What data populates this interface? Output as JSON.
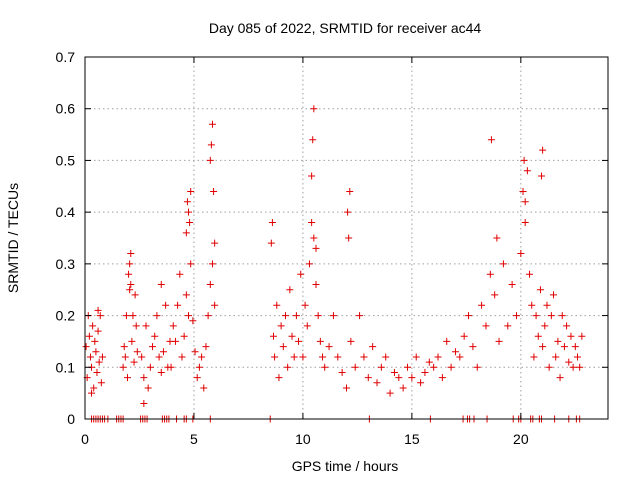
{
  "chart_data": {
    "type": "scatter",
    "title": "Day 085 of 2022, SRMTID for receiver ac44",
    "xlabel": "GPS time / hours",
    "ylabel": "SRMTID / TECUs",
    "xlim": [
      0,
      24
    ],
    "ylim": [
      0,
      0.7
    ],
    "x_ticks": [
      0,
      5,
      10,
      15,
      20
    ],
    "y_ticks": [
      0,
      0.1,
      0.2,
      0.3,
      0.4,
      0.5,
      0.6,
      0.7
    ],
    "x_tick_labels": [
      "0",
      "5",
      "10",
      "15",
      "20"
    ],
    "y_tick_labels": [
      "0",
      "0.1",
      "0.2",
      "0.3",
      "0.4",
      "0.5",
      "0.6",
      "0.7"
    ],
    "grid": true,
    "marker": "+",
    "color": "#e00000",
    "series": [
      {
        "name": "SRMTID",
        "x": [
          0.05,
          0.1,
          0.15,
          0.2,
          0.25,
          0.3,
          0.35,
          0.4,
          0.45,
          0.5,
          0.55,
          0.6,
          0.65,
          0.7,
          0.75,
          0.8,
          0.3,
          0.6,
          1.75,
          1.8,
          1.85,
          1.9,
          1.95,
          2.0,
          2.05,
          2.1,
          2.15,
          2.2,
          2.25,
          2.3,
          2.35,
          2.4,
          2.05,
          2.1,
          2.6,
          2.7,
          2.8,
          2.9,
          3.0,
          3.1,
          3.2,
          3.3,
          3.4,
          3.5,
          3.6,
          3.7,
          3.8,
          3.9,
          2.7,
          3.5,
          3.95,
          4.05,
          4.15,
          4.25,
          4.35,
          4.45,
          4.55,
          4.65,
          4.75,
          4.85,
          4.95,
          4.65,
          4.7,
          4.75,
          4.8,
          4.85,
          5.05,
          5.15,
          5.25,
          5.35,
          5.45,
          5.55,
          5.65,
          5.75,
          5.85,
          5.95,
          5.75,
          5.8,
          5.85,
          5.9,
          5.95,
          8.55,
          8.6,
          8.65,
          8.7,
          8.8,
          8.9,
          9.0,
          9.1,
          9.2,
          9.3,
          9.4,
          9.5,
          9.6,
          9.7,
          9.8,
          9.9,
          10.0,
          10.1,
          10.2,
          10.3,
          10.4,
          10.5,
          10.6,
          10.7,
          10.8,
          10.9,
          11.0,
          10.4,
          10.45,
          10.5,
          10.6,
          11.2,
          11.4,
          11.6,
          11.8,
          12.0,
          12.2,
          12.4,
          12.6,
          12.8,
          13.0,
          12.05,
          12.1,
          12.15,
          13.2,
          13.4,
          13.6,
          13.8,
          14.0,
          14.2,
          14.4,
          14.6,
          14.8,
          15.0,
          15.2,
          15.4,
          15.6,
          15.8,
          16.0,
          16.2,
          16.4,
          16.6,
          16.8,
          17.0,
          17.2,
          17.4,
          17.6,
          17.8,
          18.0,
          18.2,
          18.4,
          18.6,
          18.8,
          18.9,
          19.0,
          19.2,
          19.4,
          19.6,
          19.8,
          20.0,
          20.1,
          20.2,
          20.3,
          20.4,
          20.5,
          20.6,
          20.7,
          20.8,
          20.9,
          21.0,
          21.1,
          21.2,
          21.3,
          21.4,
          21.5,
          21.6,
          21.7,
          21.8,
          21.9,
          22.0,
          22.1,
          22.2,
          22.3,
          22.4,
          22.5,
          22.6,
          22.7,
          22.8,
          21.0,
          20.95,
          20.15,
          20.2,
          18.65,
          0.3,
          0.4,
          0.5,
          0.6,
          0.7,
          0.8,
          0.9,
          1.05,
          1.45,
          1.55,
          1.65,
          1.75,
          2.55,
          2.65,
          2.75,
          2.85,
          3.55,
          3.65,
          3.75,
          3.85,
          4.2,
          4.55,
          4.65,
          4.95,
          5.75,
          8.5,
          13.05,
          15.85,
          17.35,
          17.55,
          17.65,
          17.85,
          18.45,
          19.65,
          19.9,
          20.0,
          20.45,
          20.55,
          20.85,
          20.95,
          21.55,
          22.2,
          22.55,
          22.7
        ],
        "y": [
          0.14,
          0.08,
          0.2,
          0.16,
          0.12,
          0.1,
          0.18,
          0.06,
          0.15,
          0.13,
          0.09,
          0.17,
          0.11,
          0.2,
          0.07,
          0.12,
          0.05,
          0.21,
          0.1,
          0.14,
          0.12,
          0.2,
          0.08,
          0.28,
          0.25,
          0.32,
          0.15,
          0.2,
          0.11,
          0.24,
          0.18,
          0.13,
          0.3,
          0.26,
          0.12,
          0.08,
          0.18,
          0.06,
          0.1,
          0.14,
          0.16,
          0.2,
          0.12,
          0.09,
          0.13,
          0.22,
          0.1,
          0.15,
          0.03,
          0.26,
          0.1,
          0.18,
          0.15,
          0.22,
          0.28,
          0.12,
          0.16,
          0.24,
          0.2,
          0.3,
          0.19,
          0.36,
          0.42,
          0.4,
          0.38,
          0.44,
          0.13,
          0.08,
          0.1,
          0.12,
          0.06,
          0.14,
          0.2,
          0.26,
          0.3,
          0.22,
          0.5,
          0.53,
          0.57,
          0.44,
          0.34,
          0.34,
          0.38,
          0.16,
          0.12,
          0.22,
          0.08,
          0.18,
          0.14,
          0.2,
          0.1,
          0.25,
          0.16,
          0.12,
          0.2,
          0.15,
          0.28,
          0.12,
          0.22,
          0.18,
          0.3,
          0.38,
          0.35,
          0.26,
          0.2,
          0.15,
          0.12,
          0.1,
          0.47,
          0.54,
          0.6,
          0.33,
          0.14,
          0.2,
          0.12,
          0.09,
          0.06,
          0.15,
          0.1,
          0.2,
          0.12,
          0.08,
          0.4,
          0.35,
          0.44,
          0.14,
          0.07,
          0.1,
          0.12,
          0.05,
          0.09,
          0.08,
          0.06,
          0.1,
          0.08,
          0.12,
          0.07,
          0.09,
          0.11,
          0.1,
          0.12,
          0.08,
          0.15,
          0.1,
          0.13,
          0.12,
          0.16,
          0.2,
          0.14,
          0.1,
          0.22,
          0.18,
          0.28,
          0.24,
          0.35,
          0.15,
          0.3,
          0.18,
          0.26,
          0.2,
          0.32,
          0.44,
          0.38,
          0.48,
          0.28,
          0.22,
          0.12,
          0.2,
          0.16,
          0.25,
          0.14,
          0.18,
          0.22,
          0.1,
          0.2,
          0.24,
          0.12,
          0.15,
          0.08,
          0.2,
          0.14,
          0.18,
          0.11,
          0.16,
          0.1,
          0.14,
          0.12,
          0.1,
          0.16,
          0.52,
          0.47,
          0.5,
          0.42,
          0.54,
          0,
          0,
          0,
          0,
          0,
          0,
          0,
          0,
          0,
          0,
          0,
          0,
          0,
          0,
          0,
          0,
          0,
          0,
          0,
          0,
          0,
          0,
          0,
          0,
          0,
          0,
          0,
          0,
          0,
          0,
          0,
          0,
          0,
          0,
          0,
          0,
          0,
          0,
          0,
          0,
          0,
          0,
          0,
          0
        ]
      }
    ]
  }
}
